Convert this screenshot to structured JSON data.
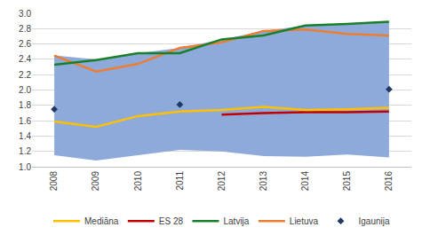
{
  "chart_data": {
    "type": "line",
    "categories": [
      "2008",
      "2009",
      "2010",
      "2011",
      "2012",
      "2013",
      "2014",
      "2015",
      "2016"
    ],
    "band": {
      "color": "#8eaadb",
      "lower": [
        1.15,
        1.08,
        1.15,
        1.22,
        1.2,
        1.14,
        1.13,
        1.16,
        1.12
      ],
      "upper": [
        2.45,
        2.4,
        2.48,
        2.55,
        2.66,
        2.77,
        2.84,
        2.86,
        2.89
      ]
    },
    "series": [
      {
        "name": "Igaunija",
        "color": "#1f3864",
        "marker": "diamond",
        "line_style": "none",
        "values": [
          1.75,
          null,
          null,
          1.81,
          null,
          null,
          null,
          null,
          2.01
        ]
      },
      {
        "name": "Lietuva",
        "color": "#ed7d31",
        "line_style": "solid",
        "values": [
          2.45,
          2.24,
          2.34,
          2.55,
          2.62,
          2.77,
          2.79,
          2.73,
          2.71
        ]
      },
      {
        "name": "Latvija",
        "color": "#1a7f2a",
        "line_style": "solid",
        "values": [
          2.33,
          2.39,
          2.48,
          2.48,
          2.66,
          2.71,
          2.84,
          2.86,
          2.89
        ]
      },
      {
        "name": "ES 28",
        "color": "#c00000",
        "line_style": "solid",
        "values": [
          null,
          null,
          null,
          null,
          1.68,
          1.7,
          1.71,
          1.71,
          1.72
        ]
      },
      {
        "name": "Mediāna",
        "color": "#ffc000",
        "line_style": "solid",
        "values": [
          1.59,
          1.52,
          1.66,
          1.72,
          1.74,
          1.78,
          1.74,
          1.75,
          1.77
        ]
      }
    ],
    "ylim": [
      1,
      3
    ],
    "yticks": [
      {
        "value": 1,
        "label": "1.0"
      },
      {
        "value": 1.2,
        "label": "1.2"
      },
      {
        "value": 1.4,
        "label": "1.4"
      },
      {
        "value": 1.6,
        "label": "1.6"
      },
      {
        "value": 1.8,
        "label": "1.8"
      },
      {
        "value": 2,
        "label": "2.0"
      },
      {
        "value": 2.2,
        "label": "2.2"
      },
      {
        "value": 2.4,
        "label": "2.4"
      },
      {
        "value": 2.6,
        "label": "2.6"
      },
      {
        "value": 2.8,
        "label": "2.8"
      },
      {
        "value": 3,
        "label": "3.0"
      }
    ],
    "grid": true,
    "legend": "bottom"
  }
}
